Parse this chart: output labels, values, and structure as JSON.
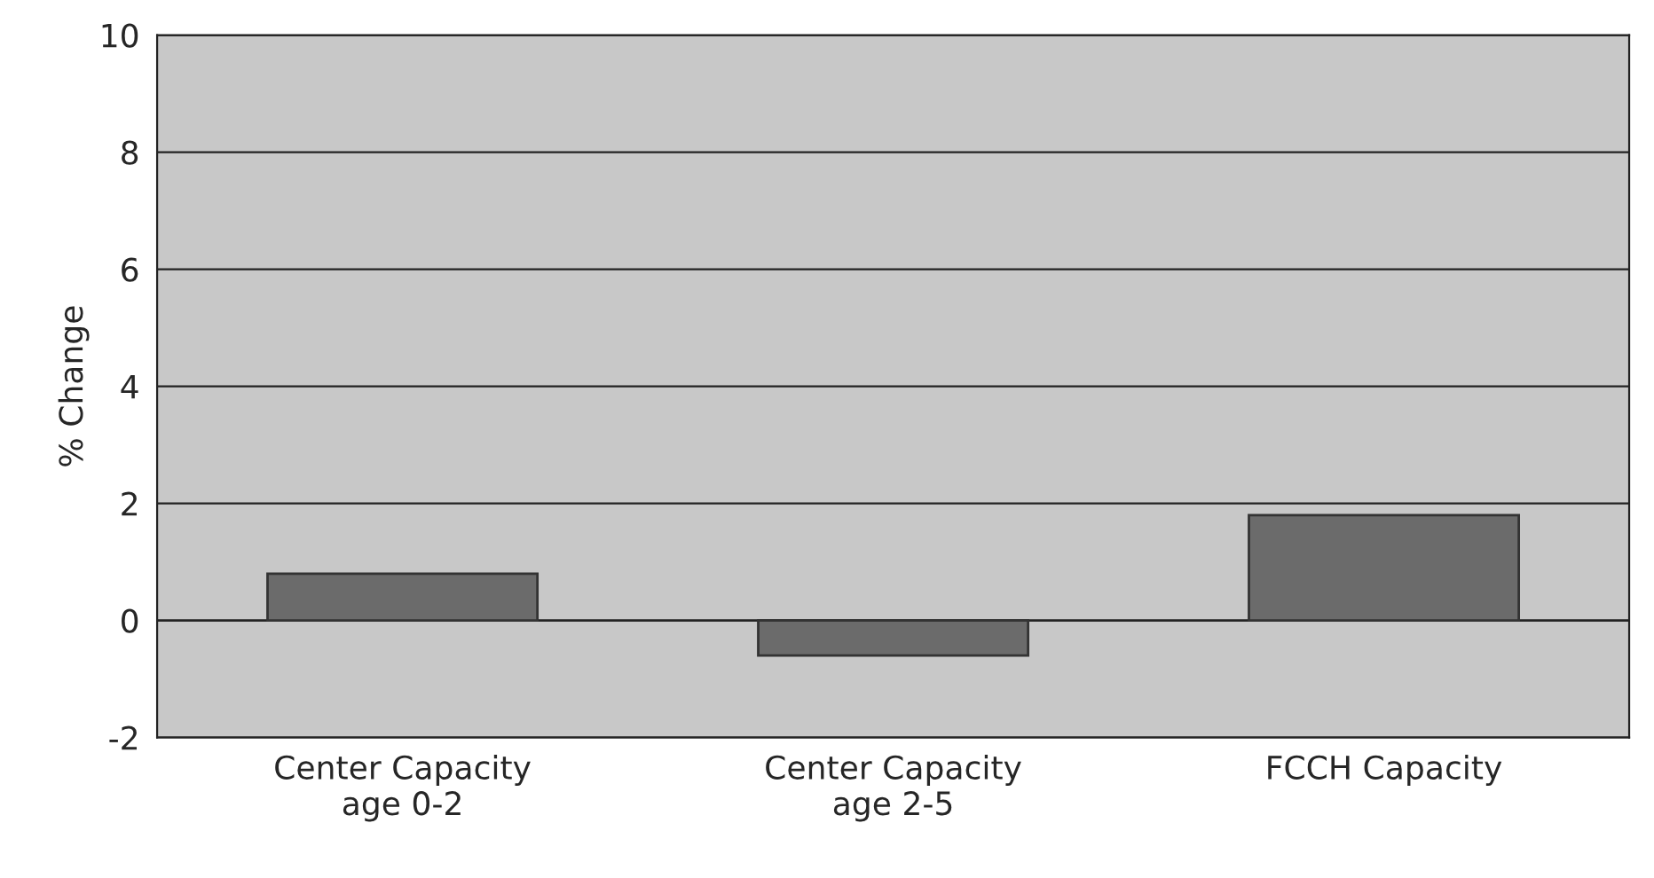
{
  "chart_data": {
    "type": "bar",
    "ylabel": "% Change",
    "categories": [
      "Center Capacity\nage 0-2",
      "Center Capacity\nage 2-5",
      "FCCH Capacity"
    ],
    "values": [
      0.8,
      -0.6,
      1.8
    ],
    "color": "#6b6b6b",
    "ylim": [
      -2,
      10
    ],
    "yticks": [
      -2,
      0,
      2,
      4,
      6,
      8,
      10
    ],
    "grid": "y"
  }
}
